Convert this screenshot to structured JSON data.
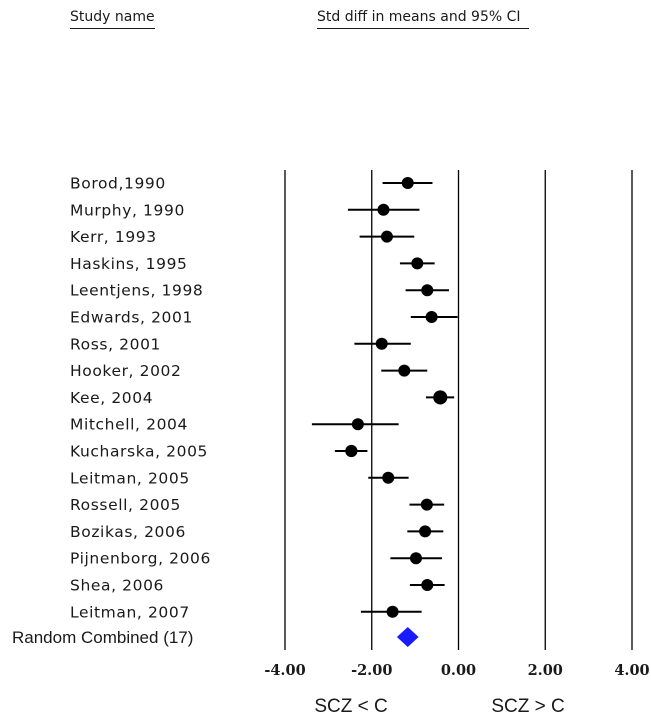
{
  "headers": {
    "study": "Study name",
    "effect": "Std diff in means and 95% CI"
  },
  "combined_label": "Random Combined (17)",
  "direction_labels": {
    "left": "SCZ < C",
    "right": "SCZ > C"
  },
  "colors": {
    "study_marker": "#000000",
    "combined_marker": "#1a1aff",
    "line": "#000000"
  },
  "chart_data": {
    "type": "forest",
    "xlim": [
      -4,
      4
    ],
    "x_ticks": [
      -4,
      -2,
      0,
      2,
      4
    ],
    "x_tick_labels": [
      "-4.00",
      "-2.00",
      "0.00",
      "2.00",
      "4.00"
    ],
    "reference_lines": [
      -4,
      -2,
      0,
      2,
      4
    ],
    "studies": [
      {
        "name": "Borod,1990",
        "estimate": -1.17,
        "lower": -1.75,
        "upper": -0.6
      },
      {
        "name": "Murphy, 1990",
        "estimate": -1.73,
        "lower": -2.55,
        "upper": -0.9
      },
      {
        "name": "Kerr, 1993",
        "estimate": -1.65,
        "lower": -2.28,
        "upper": -1.02
      },
      {
        "name": "Haskins, 1995",
        "estimate": -0.95,
        "lower": -1.35,
        "upper": -0.55
      },
      {
        "name": "Leentjens, 1998",
        "estimate": -0.72,
        "lower": -1.22,
        "upper": -0.22
      },
      {
        "name": "Edwards, 2001",
        "estimate": -0.62,
        "lower": -1.1,
        "upper": -0.02
      },
      {
        "name": "Ross, 2001",
        "estimate": -1.77,
        "lower": -2.4,
        "upper": -1.1
      },
      {
        "name": "Hooker, 2002",
        "estimate": -1.25,
        "lower": -1.78,
        "upper": -0.72
      },
      {
        "name": "Kee, 2004",
        "estimate": -0.42,
        "lower": -0.75,
        "upper": -0.1
      },
      {
        "name": "Mitchell, 2004",
        "estimate": -2.32,
        "lower": -3.38,
        "upper": -1.38
      },
      {
        "name": "Kucharska, 2005",
        "estimate": -2.47,
        "lower": -2.85,
        "upper": -2.1
      },
      {
        "name": "Leitman, 2005",
        "estimate": -1.62,
        "lower": -2.08,
        "upper": -1.15
      },
      {
        "name": "Rossell, 2005",
        "estimate": -0.73,
        "lower": -1.13,
        "upper": -0.33
      },
      {
        "name": "Bozikas, 2006",
        "estimate": -0.77,
        "lower": -1.18,
        "upper": -0.35
      },
      {
        "name": "Pijnenborg, 2006",
        "estimate": -0.98,
        "lower": -1.57,
        "upper": -0.38
      },
      {
        "name": "Shea, 2006",
        "estimate": -0.72,
        "lower": -1.12,
        "upper": -0.32
      },
      {
        "name": "Leitman, 2007",
        "estimate": -1.52,
        "lower": -2.25,
        "upper": -0.85
      }
    ],
    "combined": {
      "estimate": -1.17,
      "lower": -1.42,
      "upper": -0.92
    }
  }
}
